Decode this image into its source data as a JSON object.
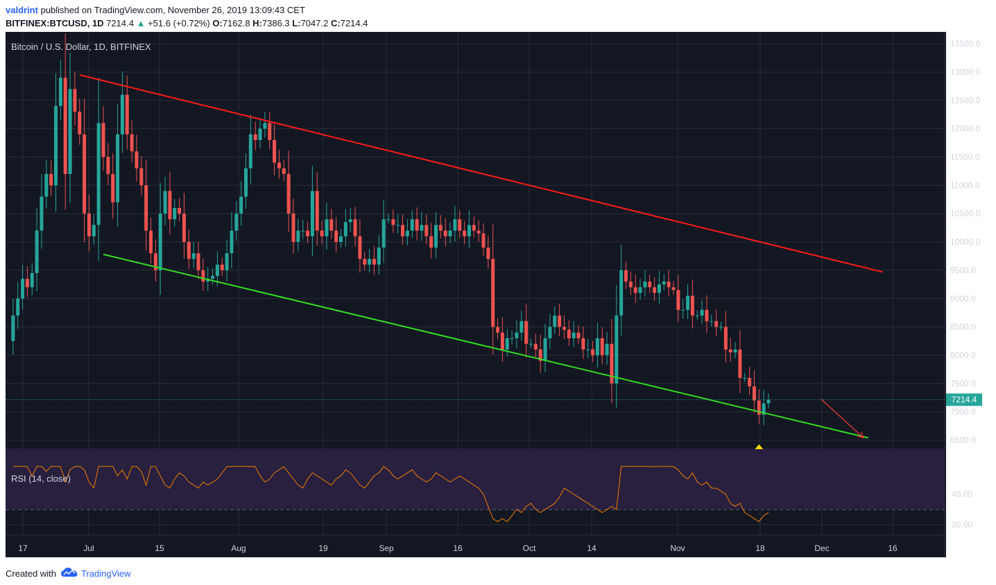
{
  "header": {
    "user": "valdrint",
    "published_text": "published on TradingView.com, November 26, 2019 13:09:43 CET",
    "symbol": "BITFINEX:BTCUSD, 1D",
    "last": "7214.4",
    "change_arrow": "▲",
    "change": "+51.6 (+0.72%)",
    "o_label": "O:",
    "o_value": "7162.8",
    "h_label": "H:",
    "h_value": "7386.3",
    "l_label": "L:",
    "l_value": "7047.2",
    "c_label": "C:",
    "c_value": "7214.4"
  },
  "footer": {
    "created_with": "Created with",
    "brand": "TradingView",
    "logo_icon": "tradingview-cloud-icon"
  },
  "colors": {
    "background": "#131722",
    "up": "#26a69a",
    "down": "#ef5350",
    "resistance": "#ff0000",
    "support": "#33dd22",
    "rsi": "#f57c00",
    "rsi_band": "#3a2a5c"
  },
  "chart_data": {
    "type": "candlestick",
    "title": "Bitcoin / U.S. Dollar, 1D, BITFINEX",
    "ylim": [
      6100,
      13850
    ],
    "yticks": [
      "13500.0",
      "13000.0",
      "12500.0",
      "12000.0",
      "11500.0",
      "11000.0",
      "10500.0",
      "10000.0",
      "9500.0",
      "9000.0",
      "8500.0",
      "8000.0",
      "7500.0",
      "7000.0",
      "6500.0"
    ],
    "xticks": [
      "17",
      "Jul",
      "15",
      "Aug",
      "19",
      "Sep",
      "16",
      "Oct",
      "14",
      "Nov",
      "18",
      "Dec",
      "16"
    ],
    "last_price_label": "7214.4",
    "candles": [
      8250,
      8700,
      9000,
      9350,
      9200,
      9450,
      10200,
      10800,
      11200,
      11000,
      12400,
      12900,
      11200,
      12700,
      12300,
      11900,
      10500,
      10100,
      10300,
      12100,
      11500,
      11200,
      10700,
      11900,
      12600,
      11900,
      11600,
      11300,
      11000,
      10200,
      9800,
      9500,
      10500,
      10900,
      10400,
      10600,
      10500,
      10000,
      9700,
      9800,
      9500,
      9300,
      9350,
      9400,
      9600,
      9500,
      9800,
      10200,
      10500,
      10800,
      11300,
      11900,
      11800,
      12000,
      12100,
      11800,
      11400,
      11300,
      11200,
      10500,
      10000,
      10200,
      10200,
      10100,
      10900,
      10200,
      10100,
      10400,
      10200,
      10000,
      10100,
      10350,
      10400,
      10100,
      9700,
      9600,
      9700,
      9600,
      9900,
      10400,
      10400,
      10300,
      10300,
      10100,
      10200,
      10400,
      10200,
      10300,
      10100,
      9900,
      10300,
      10200,
      10100,
      10200,
      10400,
      10200,
      10100,
      10300,
      10200,
      10150,
      9900,
      9700,
      8500,
      8400,
      8100,
      8300,
      8300,
      8400,
      8600,
      8200,
      8200,
      8100,
      7900,
      8300,
      8500,
      8700,
      8500,
      8450,
      8300,
      8400,
      8300,
      8100,
      8100,
      8000,
      8300,
      8000,
      8200,
      7500,
      8700,
      9500,
      9300,
      9200,
      9100,
      9200,
      9300,
      9200,
      9100,
      9250,
      9300,
      9200,
      9150,
      8800,
      8800,
      9050,
      8700,
      8700,
      8800,
      8600,
      8600,
      8500,
      8500,
      8100,
      8050,
      8100,
      7600,
      7600,
      7450,
      7200,
      6950,
      7150,
      7214.4
    ],
    "resistance_line": {
      "from": [
        "Jun 26",
        12950
      ],
      "to": [
        "Dec 12",
        9470
      ]
    },
    "support_line": {
      "from": [
        "Jul 1",
        9780
      ],
      "to": [
        "Dec 9",
        6540
      ]
    },
    "projection_arrow": {
      "from": [
        "Nov 29",
        7230
      ],
      "to": [
        "Dec 8",
        6540
      ]
    },
    "marker_icon": "yellow-triangle-up",
    "rsi": {
      "label": "RSI (14, close)",
      "yticks": [
        "40.00",
        "20.00"
      ],
      "band": [
        30,
        70
      ],
      "values": [
        62,
        60,
        64,
        58,
        52,
        60,
        62,
        55,
        64,
        66,
        58,
        48,
        56,
        60,
        62,
        56,
        48,
        44,
        60,
        64,
        62,
        60,
        52,
        56,
        50,
        58,
        60,
        55,
        46,
        60,
        58,
        52,
        46,
        44,
        50,
        54,
        52,
        48,
        46,
        44,
        48,
        46,
        48,
        50,
        54,
        58,
        64,
        66,
        68,
        62,
        60,
        58,
        52,
        48,
        50,
        54,
        56,
        58,
        54,
        50,
        46,
        44,
        50,
        54,
        52,
        50,
        48,
        46,
        50,
        52,
        56,
        54,
        50,
        46,
        44,
        48,
        52,
        54,
        58,
        56,
        52,
        50,
        52,
        54,
        56,
        52,
        50,
        48,
        50,
        54,
        52,
        50,
        48,
        50,
        52,
        50,
        48,
        46,
        44,
        40,
        32,
        24,
        22,
        24,
        22,
        26,
        30,
        28,
        32,
        34,
        30,
        28,
        30,
        32,
        34,
        38,
        44,
        42,
        40,
        38,
        36,
        34,
        32,
        30,
        28,
        30,
        32,
        30,
        58,
        74,
        66,
        62,
        60,
        62,
        60,
        58,
        60,
        62,
        60,
        58,
        56,
        52,
        50,
        54,
        48,
        46,
        48,
        44,
        44,
        42,
        40,
        34,
        32,
        34,
        28,
        26,
        24,
        22,
        26,
        28
      ]
    }
  }
}
